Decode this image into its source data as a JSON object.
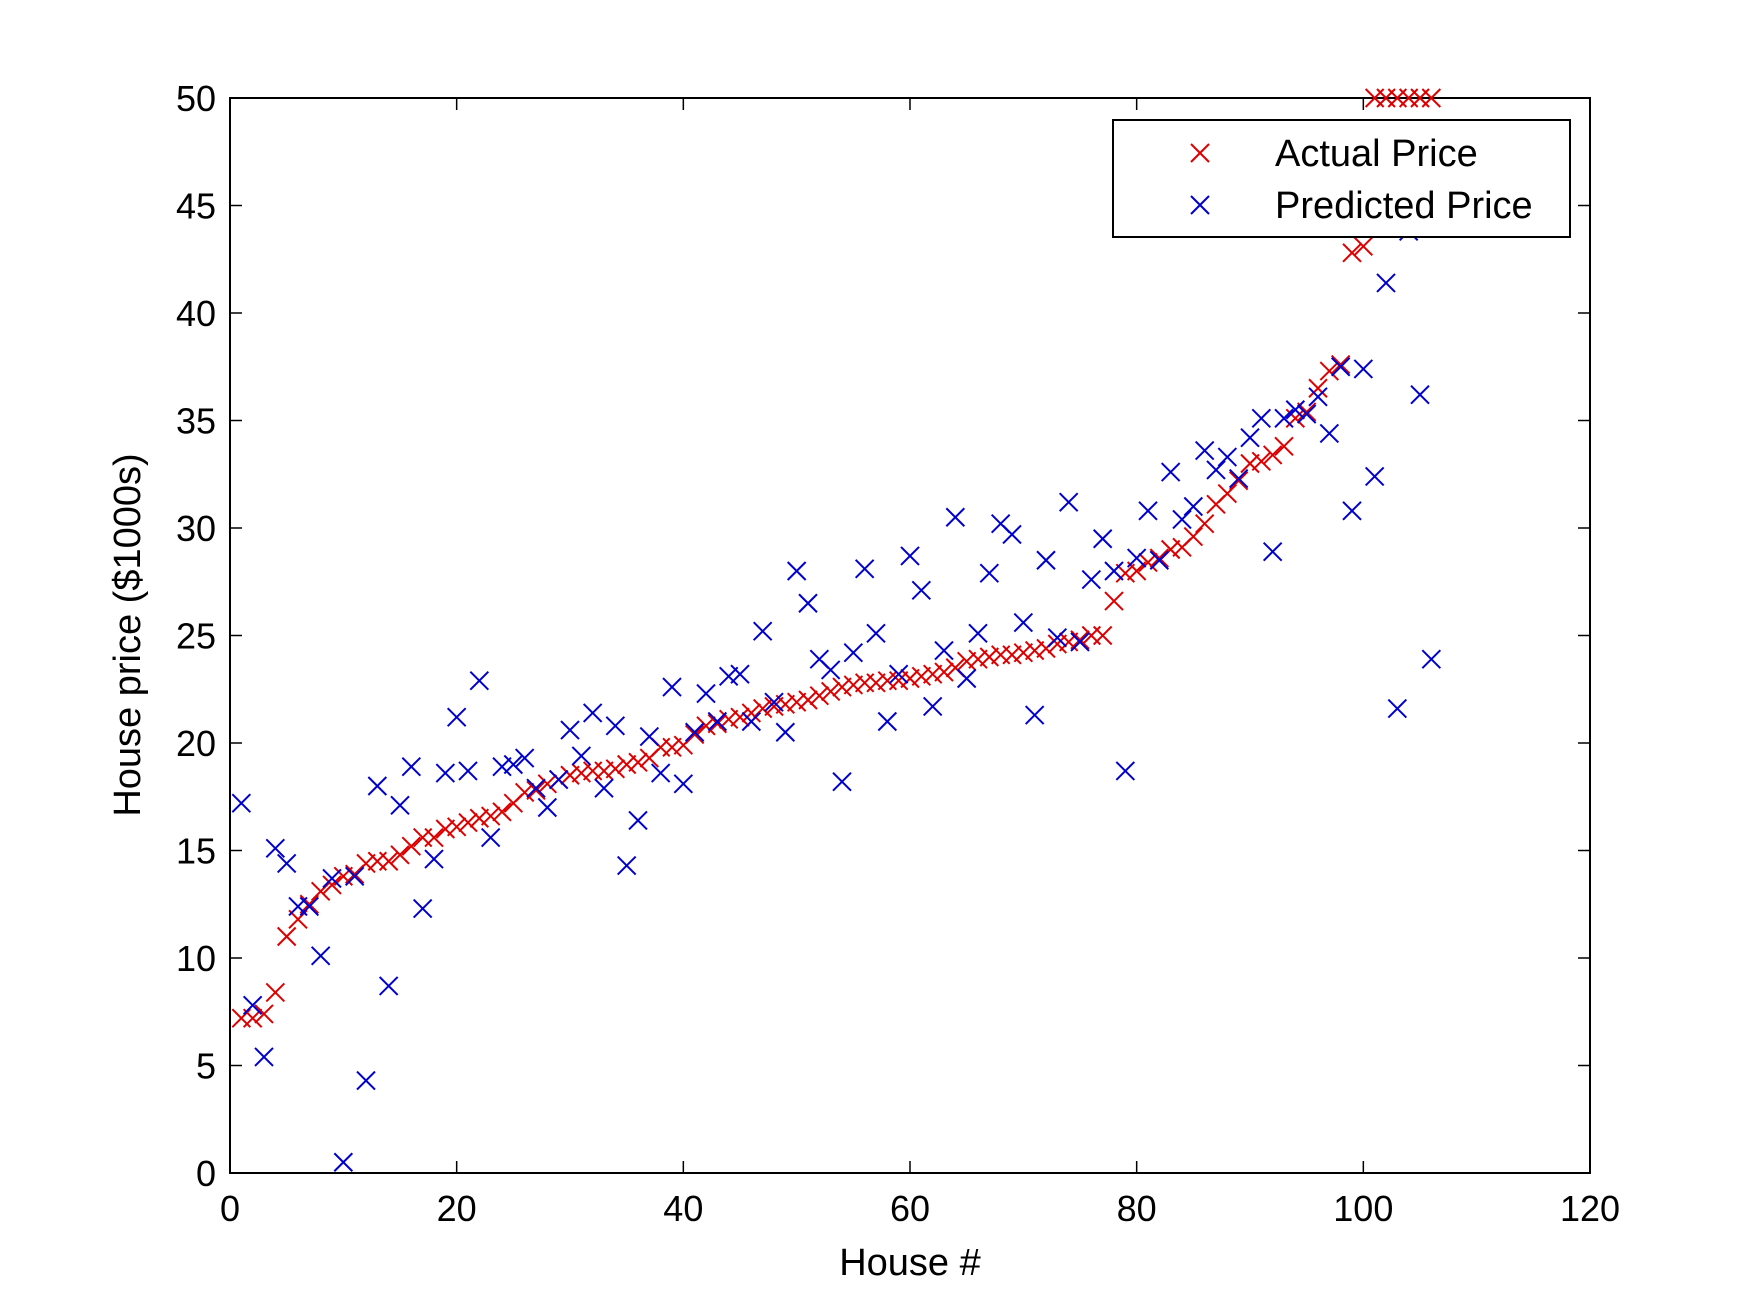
{
  "chart_data": {
    "type": "scatter",
    "title": "",
    "xlabel": "House #",
    "ylabel": "House price ($1000s)",
    "xlim": [
      0,
      120
    ],
    "ylim": [
      0,
      50
    ],
    "xticks": [
      "0",
      "20",
      "40",
      "60",
      "80",
      "100",
      "120"
    ],
    "yticks": [
      "0",
      "5",
      "10",
      "15",
      "20",
      "25",
      "30",
      "35",
      "40",
      "45",
      "50"
    ],
    "marker": "x",
    "grid": false,
    "legend_position": "top-right",
    "series": [
      {
        "name": "Actual Price",
        "color": "#dd0000",
        "x": [
          1,
          2,
          3,
          4,
          5,
          6,
          7,
          8,
          9,
          10,
          11,
          12,
          13,
          14,
          15,
          16,
          17,
          18,
          19,
          20,
          21,
          22,
          23,
          24,
          25,
          26,
          27,
          28,
          29,
          30,
          31,
          32,
          33,
          34,
          35,
          36,
          37,
          38,
          39,
          40,
          41,
          42,
          43,
          44,
          45,
          46,
          47,
          48,
          49,
          50,
          51,
          52,
          53,
          54,
          55,
          56,
          57,
          58,
          59,
          60,
          61,
          62,
          63,
          64,
          65,
          66,
          67,
          68,
          69,
          70,
          71,
          72,
          73,
          74,
          75,
          76,
          77,
          78,
          79,
          80,
          81,
          82,
          83,
          84,
          85,
          86,
          87,
          88,
          89,
          90,
          91,
          92,
          93,
          94,
          95,
          96,
          97,
          98,
          99,
          100,
          101,
          102,
          103,
          104,
          105,
          106
        ],
        "y": [
          7.2,
          7.2,
          7.4,
          8.4,
          11.0,
          11.8,
          12.5,
          13.1,
          13.4,
          13.8,
          13.9,
          14.4,
          14.5,
          14.5,
          14.8,
          15.2,
          15.6,
          15.6,
          16.0,
          16.1,
          16.3,
          16.5,
          16.6,
          16.8,
          17.2,
          17.7,
          17.8,
          18.1,
          18.3,
          18.5,
          18.6,
          18.7,
          18.7,
          18.8,
          19.0,
          19.1,
          19.3,
          19.8,
          19.8,
          19.9,
          20.4,
          20.8,
          20.9,
          21.1,
          21.2,
          21.4,
          21.6,
          21.7,
          21.8,
          21.9,
          22.0,
          22.2,
          22.4,
          22.6,
          22.7,
          22.8,
          22.8,
          22.9,
          22.9,
          23.0,
          23.1,
          23.2,
          23.3,
          23.5,
          23.8,
          23.9,
          24.0,
          24.1,
          24.1,
          24.2,
          24.3,
          24.4,
          24.6,
          24.7,
          24.8,
          25.0,
          25.0,
          26.6,
          27.9,
          28.0,
          28.4,
          28.6,
          29.0,
          29.1,
          29.6,
          30.2,
          31.1,
          31.6,
          32.2,
          33.0,
          33.1,
          33.4,
          33.8,
          35.1,
          35.4,
          36.5,
          37.3,
          37.6,
          42.8,
          43.1,
          50.0,
          50.0,
          50.0,
          50.0,
          50.0,
          50.0
        ]
      },
      {
        "name": "Predicted Price",
        "color": "#0000cc",
        "x": [
          1,
          2,
          3,
          4,
          5,
          6,
          7,
          8,
          9,
          10,
          11,
          12,
          13,
          14,
          15,
          16,
          17,
          18,
          19,
          20,
          21,
          22,
          23,
          24,
          25,
          26,
          27,
          28,
          29,
          30,
          31,
          32,
          33,
          34,
          35,
          36,
          37,
          38,
          39,
          40,
          41,
          42,
          43,
          44,
          45,
          46,
          47,
          48,
          49,
          50,
          51,
          52,
          53,
          54,
          55,
          56,
          57,
          58,
          59,
          60,
          61,
          62,
          63,
          64,
          65,
          66,
          67,
          68,
          69,
          70,
          71,
          72,
          73,
          74,
          75,
          76,
          77,
          78,
          79,
          80,
          81,
          82,
          83,
          84,
          85,
          86,
          87,
          88,
          89,
          90,
          91,
          92,
          93,
          94,
          95,
          96,
          97,
          98,
          99,
          100,
          101,
          102,
          103,
          104,
          105,
          106
        ],
        "y": [
          17.2,
          7.8,
          5.4,
          15.1,
          14.4,
          12.4,
          12.4,
          10.1,
          13.7,
          0.5,
          13.8,
          4.3,
          18.0,
          8.7,
          17.1,
          18.9,
          12.3,
          14.6,
          18.6,
          21.2,
          18.7,
          22.9,
          15.6,
          18.9,
          19.0,
          19.3,
          17.9,
          17.0,
          18.3,
          20.6,
          19.4,
          21.4,
          17.9,
          20.8,
          14.3,
          16.4,
          20.3,
          18.6,
          22.6,
          18.1,
          20.5,
          22.3,
          21.0,
          23.1,
          23.2,
          21.0,
          25.2,
          21.9,
          20.5,
          28.0,
          26.5,
          23.9,
          23.4,
          18.2,
          24.2,
          28.1,
          25.1,
          21.0,
          23.2,
          28.7,
          27.1,
          21.7,
          24.3,
          30.5,
          23.0,
          25.1,
          27.9,
          30.2,
          29.7,
          25.6,
          21.3,
          28.5,
          24.9,
          31.2,
          24.7,
          27.6,
          29.5,
          28.0,
          18.7,
          28.6,
          30.8,
          28.5,
          32.6,
          30.4,
          31.0,
          33.6,
          32.7,
          33.3,
          32.3,
          34.2,
          35.1,
          28.9,
          35.1,
          35.5,
          35.3,
          36.1,
          34.4,
          37.5,
          30.8,
          37.4,
          32.4,
          41.4,
          21.6,
          43.8,
          36.2,
          23.9
        ]
      }
    ]
  }
}
